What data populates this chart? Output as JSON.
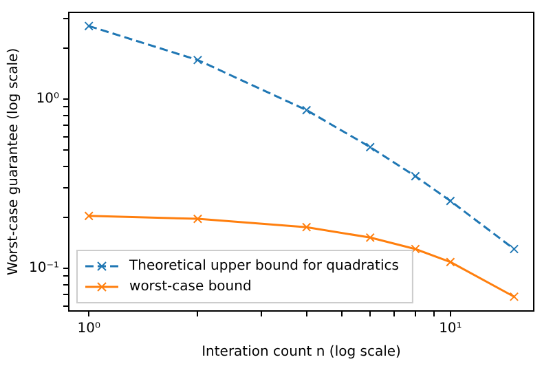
{
  "chart_data": {
    "type": "line",
    "xlabel": "Interation count n (log scale)",
    "ylabel": "Worst-case guarantee (log scale)",
    "x": [
      1,
      2,
      4,
      6,
      8,
      10,
      15
    ],
    "series": [
      {
        "name": "Theoretical upper bound for quadratics",
        "color": "#1f77b4",
        "line_style": "dashed",
        "values": [
          2.7,
          1.7,
          0.86,
          0.52,
          0.35,
          0.25,
          0.13
        ]
      },
      {
        "name": "worst-case bound",
        "color": "#ff7f0e",
        "line_style": "solid",
        "values": [
          0.204,
          0.196,
          0.175,
          0.152,
          0.13,
          0.109,
          0.068
        ]
      }
    ],
    "log": "xy",
    "marker": "cross",
    "grid": false,
    "legend": "bottom left",
    "xlim": [
      0.88,
      17
    ],
    "ylim": [
      0.056,
      3.25
    ],
    "xticks": [
      {
        "value": 1,
        "label": "10⁰"
      },
      {
        "value": 2,
        "label": null
      },
      {
        "value": 3,
        "label": null
      },
      {
        "value": 4,
        "label": null
      },
      {
        "value": 5,
        "label": null
      },
      {
        "value": 6,
        "label": null
      },
      {
        "value": 7,
        "label": null
      },
      {
        "value": 8,
        "label": null
      },
      {
        "value": 9,
        "label": null
      },
      {
        "value": 10,
        "label": "10¹"
      }
    ],
    "yticks": [
      {
        "value": 0.06,
        "label": null
      },
      {
        "value": 0.07,
        "label": null
      },
      {
        "value": 0.08,
        "label": null
      },
      {
        "value": 0.09,
        "label": null
      },
      {
        "value": 0.1,
        "label": "10⁻¹"
      },
      {
        "value": 0.2,
        "label": null
      },
      {
        "value": 0.3,
        "label": null
      },
      {
        "value": 0.4,
        "label": null
      },
      {
        "value": 0.5,
        "label": null
      },
      {
        "value": 0.6,
        "label": null
      },
      {
        "value": 0.7,
        "label": null
      },
      {
        "value": 0.8,
        "label": null
      },
      {
        "value": 0.9,
        "label": null
      },
      {
        "value": 1,
        "label": "10⁰"
      },
      {
        "value": 2,
        "label": null
      },
      {
        "value": 3,
        "label": null
      }
    ]
  }
}
